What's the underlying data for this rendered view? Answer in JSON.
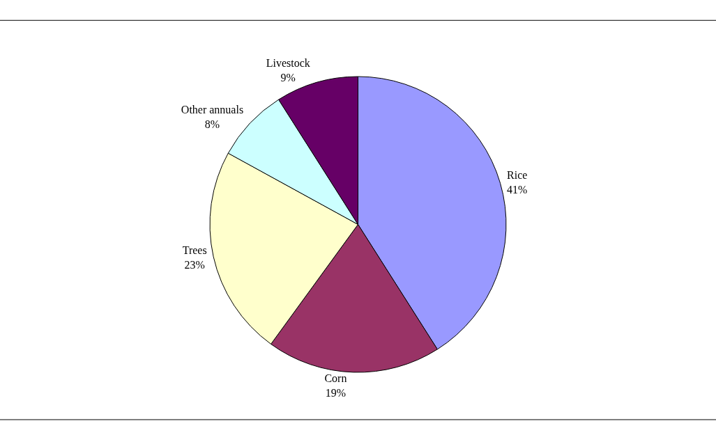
{
  "chart_data": {
    "type": "pie",
    "categories": [
      "Rice",
      "Corn",
      "Trees",
      "Other annuals",
      "Livestock"
    ],
    "values": [
      41,
      19,
      23,
      8,
      9
    ],
    "value_labels": [
      "41%",
      "19%",
      "23%",
      "8%",
      "9%"
    ],
    "colors": [
      "#9999ff",
      "#993366",
      "#ffffcc",
      "#ccffff",
      "#660066"
    ],
    "legend": false
  }
}
